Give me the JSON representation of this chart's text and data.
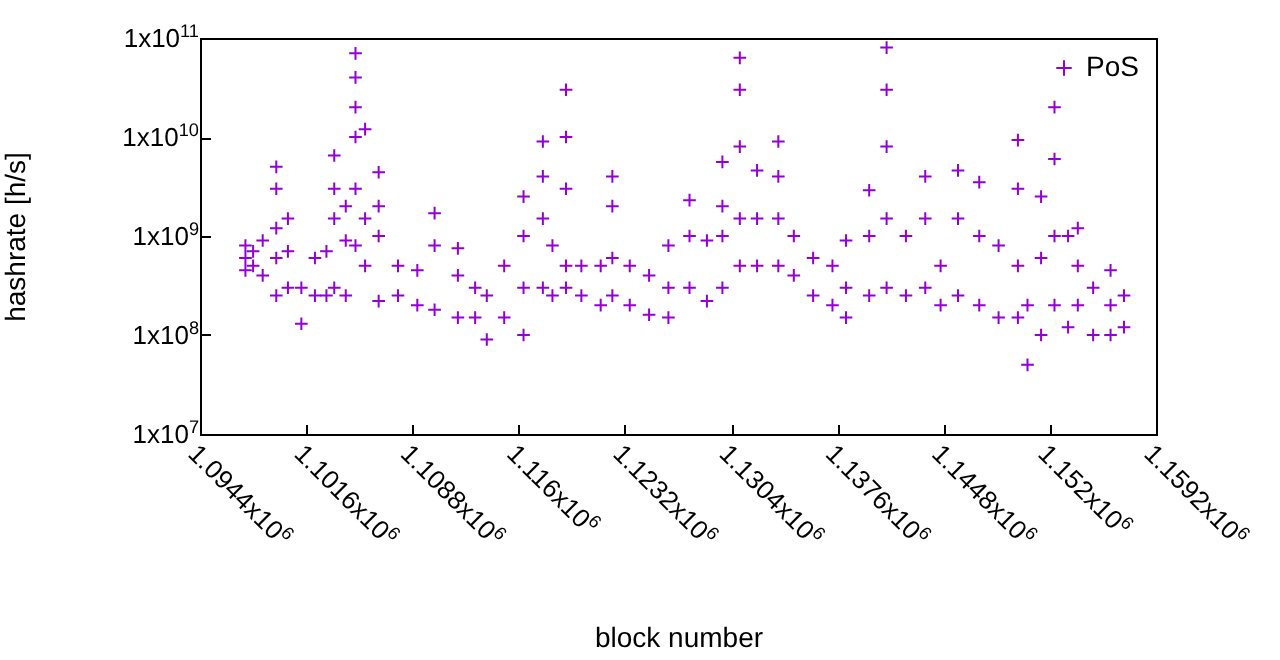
{
  "chart_data": {
    "type": "scatter",
    "xlabel": "block number",
    "ylabel": "hashrate [h/s]",
    "log": "y",
    "legend": "top right",
    "marker": "cross",
    "xlim": [
      1094400,
      1159200
    ],
    "ylim": [
      10000000,
      100000000000
    ],
    "xticks": [
      {
        "value": 1094400,
        "label": "1.0944x10$^{6}$"
      },
      {
        "value": 1101600,
        "label": "1.1016x10$^{6}$"
      },
      {
        "value": 1108800,
        "label": "1.1088x10$^{6}$"
      },
      {
        "value": 1116000,
        "label": "1.116x10$^{6}$"
      },
      {
        "value": 1123200,
        "label": "1.1232x10$^{6}$"
      },
      {
        "value": 1130400,
        "label": "1.1304x10$^{6}$"
      },
      {
        "value": 1137600,
        "label": "1.1376x10$^{6}$"
      },
      {
        "value": 1144800,
        "label": "1.1448x10$^{6}$"
      },
      {
        "value": 1152000,
        "label": "1.152x10$^{6}$"
      },
      {
        "value": 1159200,
        "label": "1.1592x10$^{6}$"
      }
    ],
    "yticks": [
      {
        "value": 10000000,
        "label": "1x10$^{7}$"
      },
      {
        "value": 100000000,
        "label": "1x10$^{8}$"
      },
      {
        "value": 1000000000,
        "label": "1x10$^{9}$"
      },
      {
        "value": 10000000000,
        "label": "1x10$^{10}$"
      },
      {
        "value": 100000000000,
        "label": "1x10$^{11}$"
      }
    ],
    "series": [
      {
        "name": "PoS",
        "color": "#9400d3",
        "x": [
          1097480,
          1097480,
          1097480,
          1098000,
          1098000,
          1098650,
          1098650,
          1099570,
          1099570,
          1099570,
          1099570,
          1099570,
          1100360,
          1100360,
          1100360,
          1101270,
          1101270,
          1102190,
          1102190,
          1102970,
          1102970,
          1103500,
          1103500,
          1103500,
          1103500,
          1104280,
          1104280,
          1104280,
          1104940,
          1104940,
          1104940,
          1104940,
          1104940,
          1104940,
          1105590,
          1105590,
          1105590,
          1106510,
          1106510,
          1106510,
          1106510,
          1107820,
          1107820,
          1109130,
          1109130,
          1110300,
          1110300,
          1110300,
          1111880,
          1111880,
          1111880,
          1113050,
          1113050,
          1113840,
          1113840,
          1115020,
          1115020,
          1116330,
          1116330,
          1116330,
          1116330,
          1117640,
          1117640,
          1117640,
          1117640,
          1118290,
          1118290,
          1119210,
          1119210,
          1119210,
          1119210,
          1119210,
          1120250,
          1120250,
          1121560,
          1121560,
          1122350,
          1122350,
          1122350,
          1122350,
          1123530,
          1123530,
          1124840,
          1124840,
          1126150,
          1126150,
          1126150,
          1127580,
          1127580,
          1127580,
          1128760,
          1128760,
          1129810,
          1129810,
          1129810,
          1129810,
          1130990,
          1130990,
          1130990,
          1130990,
          1130990,
          1132160,
          1132160,
          1132160,
          1133600,
          1133600,
          1133600,
          1133600,
          1134650,
          1134650,
          1135960,
          1135960,
          1137270,
          1137270,
          1138190,
          1138190,
          1138190,
          1139760,
          1139760,
          1139760,
          1140940,
          1140940,
          1140940,
          1140940,
          1140940,
          1142250,
          1142250,
          1143560,
          1143560,
          1143560,
          1144600,
          1144600,
          1145780,
          1145780,
          1145780,
          1147220,
          1147220,
          1147220,
          1148530,
          1148530,
          1149840,
          1149840,
          1149840,
          1149840,
          1150490,
          1150490,
          1151410,
          1151410,
          1151410,
          1152320,
          1152320,
          1152320,
          1152320,
          1153240,
          1153240,
          1153900,
          1153900,
          1153900,
          1154940,
          1154940,
          1156120,
          1156120,
          1156120,
          1157030,
          1157030
        ],
        "values": [
          800000000,
          600000000,
          450000000,
          700000000,
          500000000,
          900000000,
          400000000,
          5000000000,
          3000000000,
          1200000000,
          600000000,
          250000000,
          1500000000,
          700000000,
          300000000,
          300000000,
          130000000,
          600000000,
          250000000,
          700000000,
          250000000,
          6500000000,
          3000000000,
          1500000000,
          300000000,
          2000000000,
          900000000,
          250000000,
          70000000000,
          40000000000,
          20000000000,
          10000000000,
          3000000000,
          800000000,
          12000000000,
          1500000000,
          500000000,
          4400000000,
          2000000000,
          1000000000,
          220000000,
          500000000,
          250000000,
          450000000,
          200000000,
          1700000000,
          800000000,
          180000000,
          750000000,
          400000000,
          150000000,
          300000000,
          150000000,
          250000000,
          90000000,
          500000000,
          150000000,
          2500000000,
          1000000000,
          300000000,
          100000000,
          9000000000,
          4000000000,
          1500000000,
          300000000,
          800000000,
          250000000,
          30000000000,
          10000000000,
          3000000000,
          500000000,
          300000000,
          500000000,
          250000000,
          500000000,
          200000000,
          4000000000,
          2000000000,
          600000000,
          250000000,
          500000000,
          200000000,
          400000000,
          160000000,
          800000000,
          300000000,
          150000000,
          2300000000,
          1000000000,
          300000000,
          900000000,
          220000000,
          5600000000,
          2000000000,
          1000000000,
          300000000,
          63000000000,
          30000000000,
          8000000000,
          1500000000,
          500000000,
          4600000000,
          1500000000,
          500000000,
          9000000000,
          4000000000,
          1500000000,
          500000000,
          1000000000,
          400000000,
          600000000,
          250000000,
          500000000,
          200000000,
          900000000,
          300000000,
          150000000,
          2900000000,
          1000000000,
          250000000,
          80000000000,
          30000000000,
          8000000000,
          1500000000,
          300000000,
          1000000000,
          250000000,
          4000000000,
          1500000000,
          300000000,
          500000000,
          200000000,
          4600000000,
          1500000000,
          250000000,
          3500000000,
          1000000000,
          200000000,
          800000000,
          150000000,
          9300000000,
          3000000000,
          500000000,
          150000000,
          200000000,
          50000000,
          2500000000,
          600000000,
          100000000,
          20000000000,
          6000000000,
          1000000000,
          200000000,
          1000000000,
          120000000,
          1200000000,
          500000000,
          200000000,
          300000000,
          100000000,
          450000000,
          200000000,
          100000000,
          250000000,
          120000000
        ]
      }
    ]
  }
}
